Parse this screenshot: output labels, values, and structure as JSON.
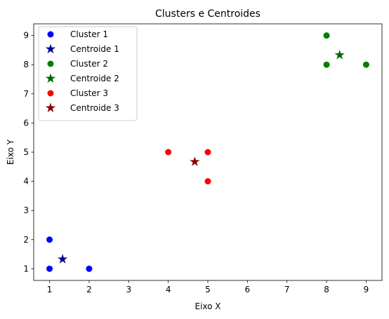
{
  "chart_data": {
    "type": "scatter",
    "title": "Clusters e Centroides",
    "xlabel": "Eixo X",
    "ylabel": "Eixo Y",
    "xlim": [
      0.6,
      9.4
    ],
    "ylim": [
      0.6,
      9.4
    ],
    "xticks": [
      1,
      2,
      3,
      4,
      5,
      6,
      7,
      8,
      9
    ],
    "yticks": [
      1,
      2,
      3,
      4,
      5,
      6,
      7,
      8,
      9
    ],
    "grid": false,
    "legend_position": "top-left",
    "series": [
      {
        "name": "Cluster 1",
        "marker": "circle",
        "color": "#0000ff",
        "points": [
          [
            1,
            1
          ],
          [
            1,
            2
          ],
          [
            2,
            1
          ]
        ]
      },
      {
        "name": "Centroide 1",
        "marker": "star",
        "color": "#00008b",
        "points": [
          [
            1.33,
            1.33
          ]
        ]
      },
      {
        "name": "Cluster 2",
        "marker": "circle",
        "color": "#008000",
        "points": [
          [
            8,
            8
          ],
          [
            8,
            9
          ],
          [
            9,
            8
          ]
        ]
      },
      {
        "name": "Centroide 2",
        "marker": "star",
        "color": "#006400",
        "points": [
          [
            8.33,
            8.33
          ]
        ]
      },
      {
        "name": "Cluster 3",
        "marker": "circle",
        "color": "#ff0000",
        "points": [
          [
            4,
            5
          ],
          [
            5,
            5
          ],
          [
            5,
            4
          ]
        ]
      },
      {
        "name": "Centroide 3",
        "marker": "star",
        "color": "#8b0000",
        "points": [
          [
            4.67,
            4.67
          ]
        ]
      }
    ]
  }
}
